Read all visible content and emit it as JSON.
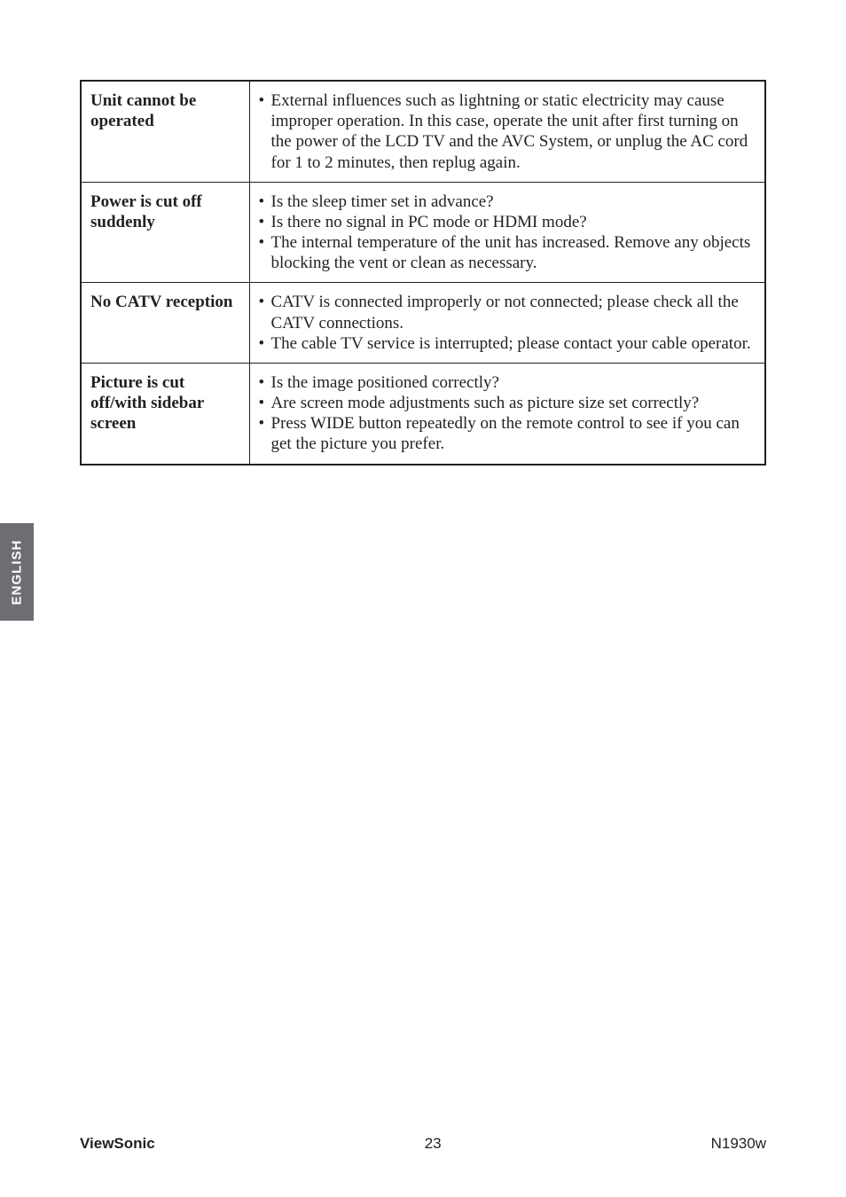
{
  "sideTab": {
    "label": "ENGLISH",
    "bg": "#6d6e71",
    "fg": "#ffffff"
  },
  "table": {
    "rows": [
      {
        "label": "Unit cannot be operated",
        "items": [
          "External influences such as lightning or static electricity may cause improper operation. In this case, operate the unit after first turning on the power of the LCD TV and the AVC System, or unplug the AC cord for 1 to 2 minutes, then replug again."
        ]
      },
      {
        "label": "Power is cut off suddenly",
        "items": [
          "Is the sleep timer set in advance?",
          "Is there no signal in PC mode or HDMI mode?",
          "The internal temperature of the unit has increased. Remove any objects blocking the vent or clean as necessary."
        ]
      },
      {
        "label": "No CATV reception",
        "items": [
          "CATV is connected improperly or not connected; please check all the CATV connections.",
          "The cable TV service is interrupted; please contact your cable operator."
        ]
      },
      {
        "label": "Picture is cut off/with sidebar screen",
        "items": [
          "Is the image positioned correctly?",
          "Are screen mode adjustments such as picture size set correctly?",
          "Press WIDE button repeatedly on the remote control to see if you can get the picture you prefer."
        ]
      }
    ]
  },
  "footer": {
    "brand": "ViewSonic",
    "page": "23",
    "model": "N1930w"
  }
}
